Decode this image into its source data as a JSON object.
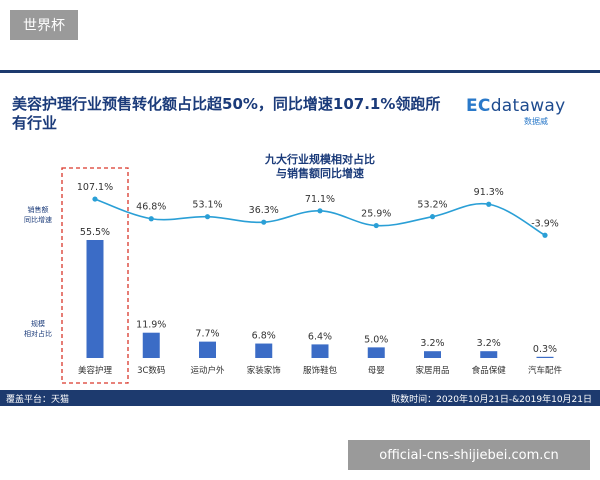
{
  "overlay": {
    "top_tag": "世界杯",
    "bottom_tag": "official-cns-shijiebei.com.cn"
  },
  "header": {
    "title_line1": "美容护理行业预售转化额占比超50%，同比增速107.1%领跑所",
    "title_line2": "有行业",
    "logo_text_ec": "EC",
    "logo_text_rest": "dataway",
    "logo_sub": "数据威"
  },
  "labels": {
    "growth_row": [
      "销售额",
      "同比增速"
    ],
    "share_row": [
      "规模",
      "相对占比"
    ]
  },
  "footer": {
    "platform": "覆盖平台：天猫",
    "period": "取数时间：2020年10月21日-&2019年10月21日"
  },
  "colors": {
    "bar": "#3b6cc6",
    "line": "#2a9fd6",
    "title": "#1b3b7a",
    "highlight_box": "#d9372b"
  },
  "chart_data": {
    "type": "bar+line",
    "title_lines": [
      "九大行业规模相对占比",
      "与销售额同比增速"
    ],
    "categories": [
      "美容护理",
      "3C数码",
      "运动户外",
      "家装家饰",
      "服饰鞋包",
      "母婴",
      "家居用品",
      "食品保健",
      "汽车配件"
    ],
    "series": [
      {
        "name": "销售额同比增速",
        "kind": "line",
        "values": [
          107.1,
          46.8,
          53.1,
          36.3,
          71.1,
          25.9,
          53.2,
          91.3,
          -3.9
        ],
        "labels": [
          "107.1%",
          "46.8%",
          "53.1%",
          "36.3%",
          "71.1%",
          "25.9%",
          "53.2%",
          "91.3%",
          "-3.9%"
        ]
      },
      {
        "name": "规模相对占比",
        "kind": "bar",
        "values": [
          55.5,
          11.9,
          7.7,
          6.8,
          6.4,
          5.0,
          3.2,
          3.2,
          0.3
        ],
        "labels": [
          "55.5%",
          "11.9%",
          "7.7%",
          "6.8%",
          "6.4%",
          "5.0%",
          "3.2%",
          "3.2%",
          "0.3%"
        ]
      }
    ],
    "highlight_category": "美容护理",
    "grid": false,
    "legend": "none"
  }
}
